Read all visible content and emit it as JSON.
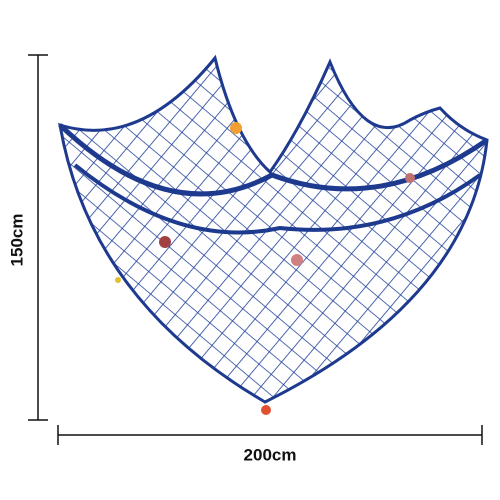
{
  "dimensions": {
    "height": "150cm",
    "width": "200cm"
  }
}
